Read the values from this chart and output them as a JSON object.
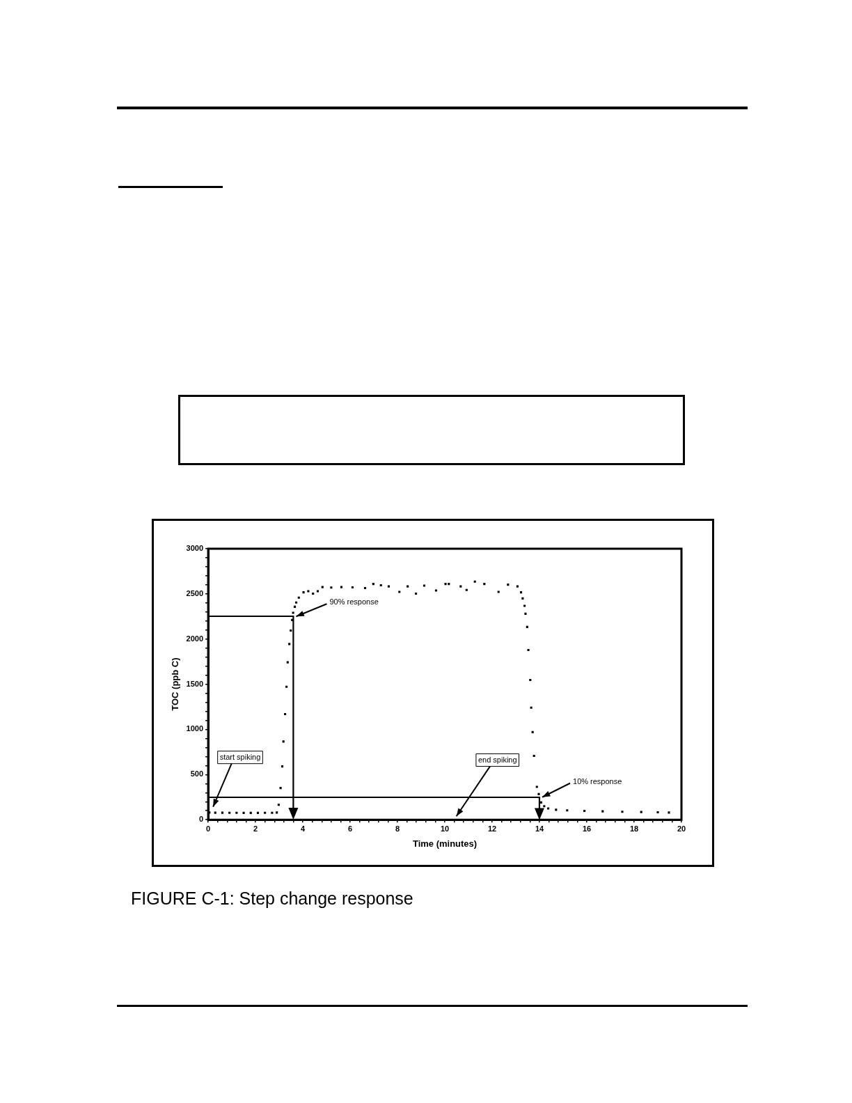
{
  "chart_data": {
    "type": "scatter",
    "title": "FIGURE C-1: Step change response",
    "xlabel": "Time (minutes)",
    "ylabel": "TOC (ppb C)",
    "xlim": [
      0,
      20
    ],
    "ylim": [
      0,
      3000
    ],
    "xticks": [
      0,
      {
        "value": 0.4,
        "label": null
      },
      {
        "value": 0.8,
        "label": null
      },
      {
        "value": 1.2,
        "label": null
      },
      {
        "value": 1.6,
        "label": null
      },
      2,
      {
        "value": 2.4,
        "label": null
      },
      {
        "value": 2.8,
        "label": null
      },
      {
        "value": 3.2,
        "label": null
      },
      {
        "value": 3.6,
        "label": null
      },
      4,
      {
        "value": 4.4,
        "label": null
      },
      {
        "value": 4.8,
        "label": null
      },
      {
        "value": 5.2,
        "label": null
      },
      {
        "value": 5.6,
        "label": null
      },
      6,
      {
        "value": 6.4,
        "label": null
      },
      {
        "value": 6.8,
        "label": null
      },
      {
        "value": 7.2,
        "label": null
      },
      {
        "value": 7.6,
        "label": null
      },
      8,
      {
        "value": 8.4,
        "label": null
      },
      {
        "value": 8.8,
        "label": null
      },
      {
        "value": 9.2,
        "label": null
      },
      {
        "value": 9.6,
        "label": null
      },
      10,
      {
        "value": 10.4,
        "label": null
      },
      {
        "value": 10.8,
        "label": null
      },
      {
        "value": 11.2,
        "label": null
      },
      {
        "value": 11.6,
        "label": null
      },
      12,
      {
        "value": 12.4,
        "label": null
      },
      {
        "value": 12.8,
        "label": null
      },
      {
        "value": 13.2,
        "label": null
      },
      {
        "value": 13.6,
        "label": null
      },
      14,
      {
        "value": 14.4,
        "label": null
      },
      {
        "value": 14.8,
        "label": null
      },
      {
        "value": 15.2,
        "label": null
      },
      {
        "value": 15.6,
        "label": null
      },
      16,
      {
        "value": 16.4,
        "label": null
      },
      {
        "value": 16.8,
        "label": null
      },
      {
        "value": 17.2,
        "label": null
      },
      {
        "value": 17.6,
        "label": null
      },
      18,
      {
        "value": 18.4,
        "label": null
      },
      {
        "value": 18.8,
        "label": null
      },
      {
        "value": 19.2,
        "label": null
      },
      {
        "value": 19.6,
        "label": null
      },
      20
    ],
    "yticks": [
      0,
      {
        "value": 100,
        "label": null
      },
      {
        "value": 200,
        "label": null
      },
      {
        "value": 300,
        "label": null
      },
      {
        "value": 400,
        "label": null
      },
      500,
      {
        "value": 600,
        "label": null
      },
      {
        "value": 700,
        "label": null
      },
      {
        "value": 800,
        "label": null
      },
      {
        "value": 900,
        "label": null
      },
      1000,
      {
        "value": 1100,
        "label": null
      },
      {
        "value": 1200,
        "label": null
      },
      {
        "value": 1300,
        "label": null
      },
      {
        "value": 1400,
        "label": null
      },
      1500,
      {
        "value": 1600,
        "label": null
      },
      {
        "value": 1700,
        "label": null
      },
      {
        "value": 1800,
        "label": null
      },
      {
        "value": 1900,
        "label": null
      },
      2000,
      {
        "value": 2100,
        "label": null
      },
      {
        "value": 2200,
        "label": null
      },
      {
        "value": 2300,
        "label": null
      },
      {
        "value": 2400,
        "label": null
      },
      2500,
      {
        "value": 2600,
        "label": null
      },
      {
        "value": 2700,
        "label": null
      },
      {
        "value": 2800,
        "label": null
      },
      {
        "value": 2900,
        "label": null
      },
      3000
    ],
    "grid": false,
    "legend": false,
    "marker": "square",
    "series": [
      {
        "type": "scatter",
        "color": "#000000",
        "x": [
          0.05,
          0.3,
          0.6,
          0.9,
          1.2,
          1.5,
          1.8,
          2.1,
          2.4,
          2.7,
          2.9,
          2.98,
          3.06,
          3.13,
          3.18,
          3.25,
          3.31,
          3.36,
          3.43,
          3.49,
          3.55,
          3.59,
          3.66,
          3.72,
          3.83,
          4.03,
          4.23,
          4.43,
          4.63,
          4.83,
          5.2,
          5.63,
          6.1,
          6.63,
          6.98,
          7.3,
          7.63,
          8.08,
          8.43,
          8.78,
          9.13,
          9.63,
          10.03,
          10.17,
          10.67,
          10.92,
          11.27,
          11.67,
          12.27,
          12.67,
          13.07,
          13.22,
          13.29,
          13.37,
          13.41,
          13.48,
          13.53,
          13.61,
          13.65,
          13.71,
          13.77,
          13.89,
          13.97,
          14.07,
          14.2,
          14.37,
          14.7,
          15.17,
          15.9,
          16.67,
          17.5,
          18.3,
          19.0,
          19.47
        ],
        "values": [
          80,
          78,
          78,
          77,
          77,
          76,
          76,
          76,
          77,
          77,
          80,
          165,
          351,
          590,
          866,
          1169,
          1472,
          1743,
          1945,
          2094,
          2211,
          2291,
          2357,
          2405,
          2458,
          2517,
          2530,
          2503,
          2530,
          2575,
          2570,
          2575,
          2572,
          2565,
          2610,
          2595,
          2583,
          2522,
          2583,
          2503,
          2591,
          2538,
          2610,
          2610,
          2583,
          2543,
          2636,
          2610,
          2522,
          2602,
          2583,
          2517,
          2450,
          2368,
          2280,
          2134,
          1879,
          1547,
          1241,
          970,
          707,
          364,
          284,
          191,
          150,
          125,
          110,
          104,
          98,
          93,
          88,
          85,
          82,
          80
        ]
      }
    ],
    "annotations": [
      {
        "text": "90% response",
        "x": 3.6,
        "y": 2250
      },
      "start spiking",
      "end spiking",
      {
        "text": "10% response",
        "x": 14,
        "y": 250
      }
    ]
  }
}
